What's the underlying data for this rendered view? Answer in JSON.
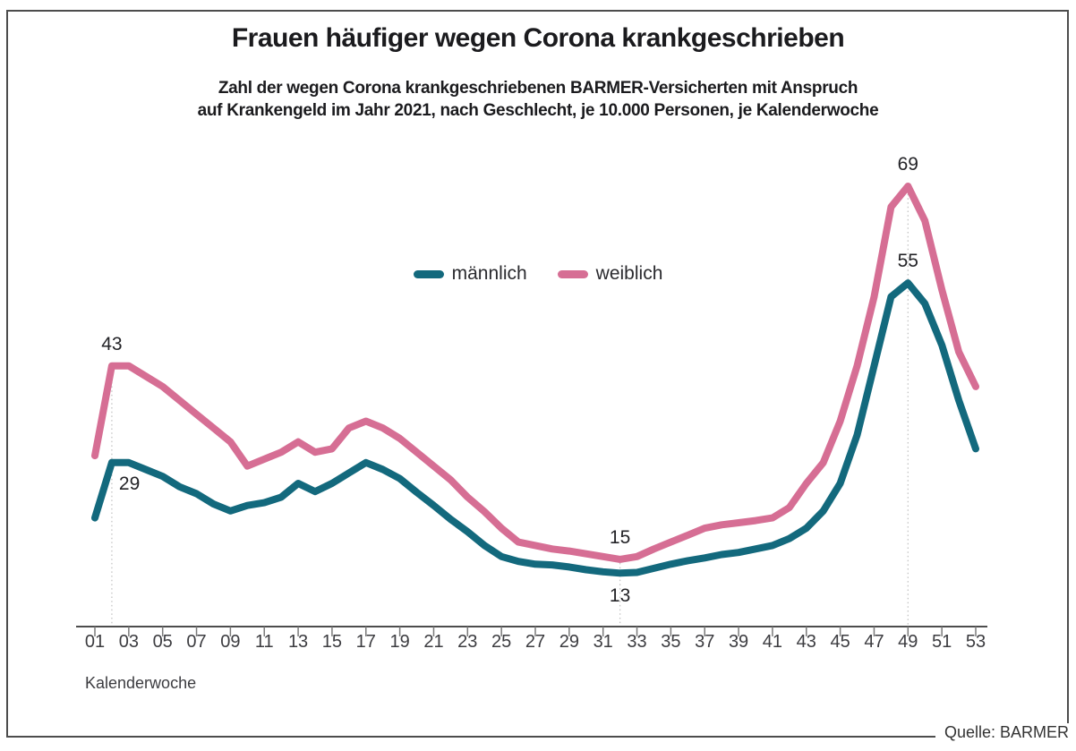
{
  "header": {
    "title": "Frauen häufiger wegen Corona krankgeschrieben",
    "subtitle_line1": "Zahl der wegen Corona krankgeschriebenen BARMER-Versicherten mit Anspruch",
    "subtitle_line2": "auf Krankengeld im Jahr 2021, nach Geschlecht, je 10.000 Personen, je Kalenderwoche"
  },
  "legend": {
    "items": [
      {
        "label": "männlich",
        "color": "#13697d"
      },
      {
        "label": "weiblich",
        "color": "#d66e94"
      }
    ]
  },
  "axes": {
    "x_title": "Kalenderwoche",
    "x_tick_labels": [
      "01",
      "03",
      "05",
      "07",
      "09",
      "11",
      "13",
      "15",
      "17",
      "19",
      "21",
      "23",
      "25",
      "27",
      "29",
      "31",
      "33",
      "35",
      "37",
      "39",
      "41",
      "43",
      "45",
      "47",
      "49",
      "51",
      "53"
    ]
  },
  "footer": {
    "source": "Quelle: BARMER"
  },
  "colors": {
    "maennlich_line": "#13697d",
    "weiblich_line": "#d66e94",
    "text_dark": "#1b1b1e",
    "axis": "#4d4d4d",
    "tick": "#7a7a7a",
    "guide_dotted": "#c4c4c4",
    "frame_border": "#4d4d4d"
  },
  "chart_data": {
    "type": "line",
    "title": "Frauen häufiger wegen Corona krankgeschrieben",
    "subtitle": "Zahl der wegen Corona krankgeschriebenen BARMER-Versicherten mit Anspruch auf Krankengeld im Jahr 2021, nach Geschlecht, je 10.000 Personen, je Kalenderwoche",
    "xlabel": "Kalenderwoche",
    "legend_position": "top-center",
    "grid": false,
    "x": [
      1,
      2,
      3,
      4,
      5,
      6,
      7,
      8,
      9,
      10,
      11,
      12,
      13,
      14,
      15,
      16,
      17,
      18,
      19,
      20,
      21,
      22,
      23,
      24,
      25,
      26,
      27,
      28,
      29,
      30,
      31,
      32,
      33,
      34,
      35,
      36,
      37,
      38,
      39,
      40,
      41,
      42,
      43,
      44,
      45,
      46,
      47,
      48,
      49,
      50,
      51,
      52,
      53
    ],
    "x_tick_labels": [
      "01",
      "03",
      "05",
      "07",
      "09",
      "11",
      "13",
      "15",
      "17",
      "19",
      "21",
      "23",
      "25",
      "27",
      "29",
      "31",
      "33",
      "35",
      "37",
      "39",
      "41",
      "43",
      "45",
      "47",
      "49",
      "51",
      "53"
    ],
    "ylim": [
      5,
      74
    ],
    "series": [
      {
        "name": "männlich",
        "color": "#13697d",
        "values": [
          21,
          29,
          29,
          28,
          27,
          25.5,
          24.5,
          23,
          22,
          22.8,
          23.2,
          24,
          26,
          24.8,
          26,
          27.5,
          29,
          28,
          26.7,
          24.7,
          22.8,
          20.8,
          19,
          17,
          15.4,
          14.7,
          14.3,
          14.2,
          13.9,
          13.5,
          13.2,
          13,
          13.1,
          13.7,
          14.3,
          14.8,
          15.2,
          15.7,
          16,
          16.5,
          17,
          18,
          19.5,
          22,
          26,
          33,
          43,
          53,
          55,
          52,
          46,
          38,
          31
        ]
      },
      {
        "name": "weiblich",
        "color": "#d66e94",
        "values": [
          30,
          43,
          43,
          41.5,
          40,
          38,
          36,
          34,
          32,
          28.5,
          29.5,
          30.5,
          32,
          30.5,
          31,
          34,
          35,
          34,
          32.5,
          30.5,
          28.5,
          26.5,
          24,
          21.9,
          19.5,
          17.5,
          17,
          16.5,
          16.2,
          15.8,
          15.4,
          15,
          15.4,
          16.5,
          17.5,
          18.5,
          19.5,
          20,
          20.3,
          20.6,
          21,
          22.5,
          26,
          29,
          35,
          43,
          53,
          66,
          69,
          64,
          54,
          45,
          40
        ]
      }
    ],
    "annotations": [
      {
        "series": "weiblich",
        "week": 2,
        "value": 43,
        "label": "43",
        "placement": "above"
      },
      {
        "series": "männlich",
        "week": 2,
        "value": 29,
        "label": "29",
        "placement": "below-right"
      },
      {
        "series": "weiblich",
        "week": 32,
        "value": 15,
        "label": "15",
        "placement": "above"
      },
      {
        "series": "männlich",
        "week": 32,
        "value": 13,
        "label": "13",
        "placement": "below"
      },
      {
        "series": "weiblich",
        "week": 49,
        "value": 69,
        "label": "69",
        "placement": "above"
      },
      {
        "series": "männlich",
        "week": 49,
        "value": 55,
        "label": "55",
        "placement": "above"
      }
    ],
    "guide_weeks": [
      2,
      32,
      49
    ]
  }
}
